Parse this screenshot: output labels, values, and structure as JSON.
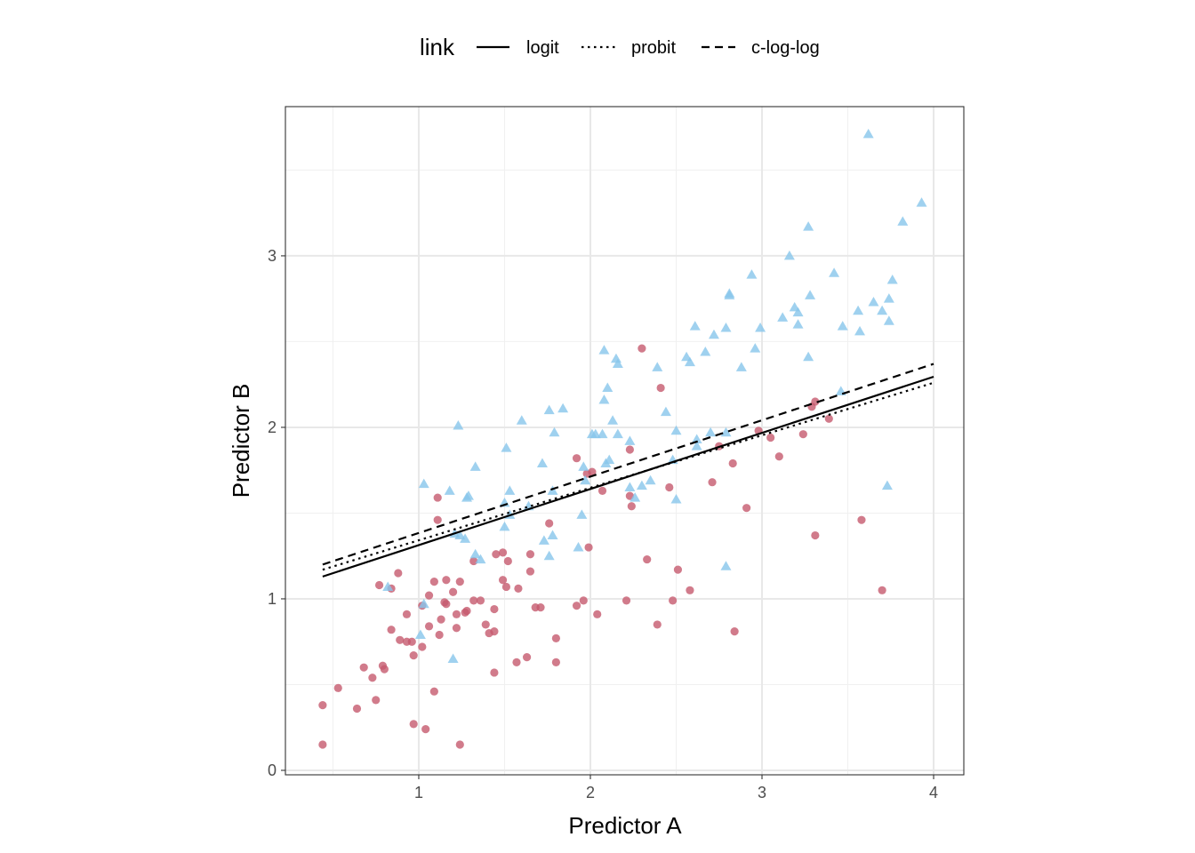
{
  "chart_data": {
    "type": "scatter",
    "title": "",
    "xlabel": "Predictor A",
    "ylabel": "Predictor B",
    "xlim": [
      0.223,
      4.176
    ],
    "ylim": [
      -0.026,
      3.87
    ],
    "xticks": [
      1,
      2,
      3,
      4
    ],
    "yticks": [
      0,
      1,
      2,
      3
    ],
    "grid": true,
    "legend": {
      "title": "link",
      "placement": "top",
      "entries": [
        {
          "label": "logit",
          "dash": "solid"
        },
        {
          "label": "probit",
          "dash": "dotted"
        },
        {
          "label": "c-log-log",
          "dash": "dashed"
        }
      ]
    },
    "lines": [
      {
        "name": "logit",
        "dash": "solid",
        "points": [
          [
            0.44,
            1.13
          ],
          [
            4.0,
            2.295
          ]
        ]
      },
      {
        "name": "probit",
        "dash": "dotted",
        "points": [
          [
            0.44,
            1.17
          ],
          [
            4.0,
            2.26
          ]
        ]
      },
      {
        "name": "c-log-log",
        "dash": "dashed",
        "points": [
          [
            0.44,
            1.2
          ],
          [
            4.0,
            2.37
          ]
        ]
      }
    ],
    "groups": [
      {
        "marker": "circle",
        "color": "#c65a6e",
        "points": [
          [
            0.44,
            0.15
          ],
          [
            0.44,
            0.38
          ],
          [
            0.53,
            0.48
          ],
          [
            0.64,
            0.36
          ],
          [
            0.68,
            0.6
          ],
          [
            0.73,
            0.54
          ],
          [
            0.75,
            0.41
          ],
          [
            0.79,
            0.61
          ],
          [
            0.8,
            0.59
          ],
          [
            0.77,
            1.08
          ],
          [
            0.84,
            1.06
          ],
          [
            0.88,
            1.15
          ],
          [
            0.84,
            0.82
          ],
          [
            0.89,
            0.76
          ],
          [
            0.93,
            0.75
          ],
          [
            0.96,
            0.75
          ],
          [
            0.93,
            0.91
          ],
          [
            0.97,
            0.67
          ],
          [
            1.02,
            0.72
          ],
          [
            1.02,
            0.96
          ],
          [
            1.06,
            1.02
          ],
          [
            1.09,
            1.1
          ],
          [
            1.16,
            1.11
          ],
          [
            1.24,
            1.1
          ],
          [
            1.15,
            0.98
          ],
          [
            1.16,
            0.97
          ],
          [
            1.06,
            0.84
          ],
          [
            1.12,
            0.79
          ],
          [
            1.13,
            0.88
          ],
          [
            1.2,
            1.04
          ],
          [
            1.22,
            0.91
          ],
          [
            1.22,
            0.83
          ],
          [
            1.27,
            0.92
          ],
          [
            1.28,
            0.93
          ],
          [
            1.32,
            0.99
          ],
          [
            1.36,
            0.99
          ],
          [
            1.32,
            1.22
          ],
          [
            1.44,
            0.94
          ],
          [
            1.39,
            0.85
          ],
          [
            1.41,
            0.8
          ],
          [
            1.44,
            0.81
          ],
          [
            1.44,
            0.57
          ],
          [
            1.49,
            1.11
          ],
          [
            1.51,
            1.07
          ],
          [
            1.52,
            1.22
          ],
          [
            1.45,
            1.26
          ],
          [
            1.49,
            1.27
          ],
          [
            1.58,
            1.06
          ],
          [
            1.65,
            1.16
          ],
          [
            1.65,
            1.26
          ],
          [
            1.57,
            0.63
          ],
          [
            1.63,
            0.66
          ],
          [
            1.68,
            0.95
          ],
          [
            1.71,
            0.95
          ],
          [
            1.76,
            1.44
          ],
          [
            1.8,
            0.77
          ],
          [
            1.8,
            0.63
          ],
          [
            1.92,
            0.96
          ],
          [
            1.96,
            0.99
          ],
          [
            1.99,
            1.3
          ],
          [
            2.04,
            0.91
          ],
          [
            1.98,
            1.73
          ],
          [
            2.01,
            1.74
          ],
          [
            2.07,
            1.63
          ],
          [
            1.92,
            1.82
          ],
          [
            2.21,
            0.99
          ],
          [
            2.23,
            1.87
          ],
          [
            2.23,
            1.6
          ],
          [
            2.24,
            1.54
          ],
          [
            2.3,
            2.46
          ],
          [
            2.33,
            1.23
          ],
          [
            2.39,
            0.85
          ],
          [
            2.41,
            2.23
          ],
          [
            2.46,
            1.65
          ],
          [
            2.48,
            0.99
          ],
          [
            2.51,
            1.17
          ],
          [
            2.58,
            1.05
          ],
          [
            2.71,
            1.68
          ],
          [
            2.75,
            1.89
          ],
          [
            2.83,
            1.79
          ],
          [
            2.84,
            0.81
          ],
          [
            2.91,
            1.53
          ],
          [
            2.98,
            1.98
          ],
          [
            3.05,
            1.94
          ],
          [
            3.1,
            1.83
          ],
          [
            3.24,
            1.96
          ],
          [
            3.29,
            2.12
          ],
          [
            3.31,
            2.15
          ],
          [
            3.31,
            1.37
          ],
          [
            3.39,
            2.05
          ],
          [
            3.58,
            1.46
          ],
          [
            3.7,
            1.05
          ],
          [
            1.09,
            0.46
          ],
          [
            0.97,
            0.27
          ],
          [
            1.04,
            0.24
          ],
          [
            1.24,
            0.15
          ],
          [
            1.11,
            1.46
          ],
          [
            1.11,
            1.59
          ]
        ]
      },
      {
        "marker": "triangle",
        "color": "#87c6eb",
        "points": [
          [
            1.03,
            1.67
          ],
          [
            1.18,
            1.63
          ],
          [
            1.23,
            2.01
          ],
          [
            1.33,
            1.77
          ],
          [
            1.28,
            1.59
          ],
          [
            1.29,
            1.6
          ],
          [
            1.21,
            1.38
          ],
          [
            1.24,
            1.37
          ],
          [
            1.27,
            1.35
          ],
          [
            1.33,
            1.26
          ],
          [
            1.36,
            1.23
          ],
          [
            1.53,
            1.63
          ],
          [
            1.51,
            1.88
          ],
          [
            1.6,
            2.04
          ],
          [
            1.5,
            1.56
          ],
          [
            1.5,
            1.42
          ],
          [
            1.53,
            1.49
          ],
          [
            1.64,
            1.54
          ],
          [
            1.72,
            1.79
          ],
          [
            1.76,
            2.1
          ],
          [
            1.79,
            1.97
          ],
          [
            1.84,
            2.11
          ],
          [
            1.78,
            1.63
          ],
          [
            1.73,
            1.34
          ],
          [
            1.78,
            1.37
          ],
          [
            1.76,
            1.25
          ],
          [
            1.93,
            1.3
          ],
          [
            1.95,
            1.49
          ],
          [
            1.96,
            1.77
          ],
          [
            1.97,
            1.69
          ],
          [
            2.01,
            1.96
          ],
          [
            2.03,
            1.96
          ],
          [
            2.07,
            1.96
          ],
          [
            2.08,
            2.16
          ],
          [
            2.1,
            2.23
          ],
          [
            2.08,
            2.45
          ],
          [
            2.15,
            2.4
          ],
          [
            2.16,
            2.37
          ],
          [
            2.13,
            2.04
          ],
          [
            2.16,
            1.96
          ],
          [
            2.09,
            1.79
          ],
          [
            2.11,
            1.81
          ],
          [
            2.23,
            1.92
          ],
          [
            2.23,
            1.65
          ],
          [
            2.26,
            1.59
          ],
          [
            2.3,
            1.66
          ],
          [
            2.35,
            1.69
          ],
          [
            2.39,
            2.35
          ],
          [
            2.44,
            2.09
          ],
          [
            2.5,
            1.98
          ],
          [
            2.5,
            1.58
          ],
          [
            2.48,
            1.81
          ],
          [
            2.56,
            2.41
          ],
          [
            2.58,
            2.38
          ],
          [
            2.61,
            2.59
          ],
          [
            2.67,
            2.44
          ],
          [
            2.62,
            1.93
          ],
          [
            2.62,
            1.89
          ],
          [
            2.7,
            1.97
          ],
          [
            2.72,
            2.54
          ],
          [
            2.79,
            2.58
          ],
          [
            2.81,
            2.78
          ],
          [
            2.81,
            2.77
          ],
          [
            2.79,
            1.97
          ],
          [
            2.88,
            2.35
          ],
          [
            2.94,
            2.89
          ],
          [
            2.96,
            2.46
          ],
          [
            2.99,
            2.58
          ],
          [
            3.12,
            2.64
          ],
          [
            3.16,
            3.0
          ],
          [
            3.19,
            2.7
          ],
          [
            3.21,
            2.67
          ],
          [
            3.21,
            2.6
          ],
          [
            3.27,
            3.17
          ],
          [
            3.28,
            2.77
          ],
          [
            3.27,
            2.41
          ],
          [
            3.42,
            2.9
          ],
          [
            3.46,
            2.21
          ],
          [
            3.47,
            2.59
          ],
          [
            3.56,
            2.68
          ],
          [
            3.57,
            2.56
          ],
          [
            3.62,
            3.71
          ],
          [
            3.65,
            2.73
          ],
          [
            3.7,
            2.68
          ],
          [
            3.74,
            2.75
          ],
          [
            3.74,
            2.62
          ],
          [
            3.76,
            2.86
          ],
          [
            3.82,
            3.2
          ],
          [
            3.93,
            3.31
          ],
          [
            3.73,
            1.66
          ],
          [
            2.79,
            1.19
          ],
          [
            1.2,
            0.65
          ],
          [
            1.01,
            0.79
          ],
          [
            1.03,
            0.97
          ],
          [
            0.82,
            1.07
          ]
        ]
      }
    ]
  }
}
